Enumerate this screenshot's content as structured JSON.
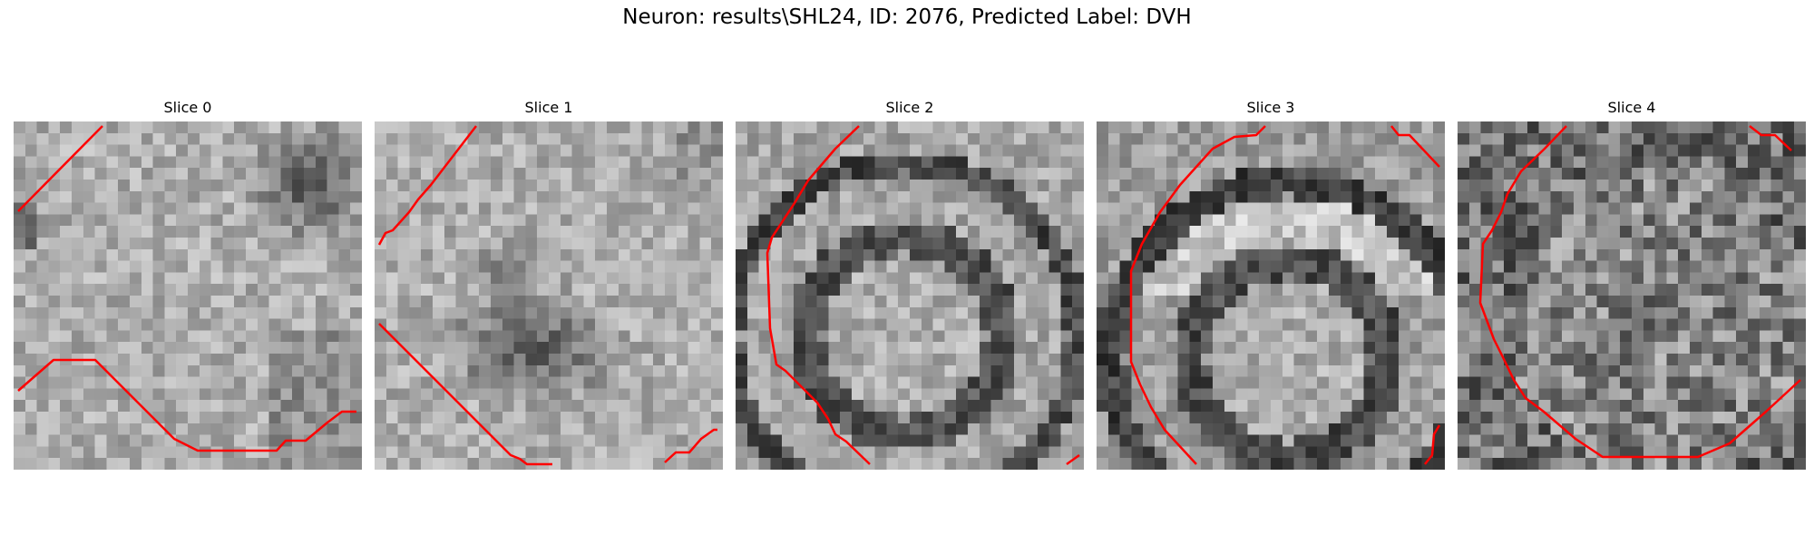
{
  "figure": {
    "title": "Neuron: results\\SHL24, ID: 2076, Predicted Label: DVH"
  },
  "panels": [
    {
      "label": "Slice 0"
    },
    {
      "label": "Slice 1"
    },
    {
      "label": "Slice 2"
    },
    {
      "label": "Slice 3"
    },
    {
      "label": "Slice 4"
    }
  ],
  "contour_color": "#ff0000"
}
